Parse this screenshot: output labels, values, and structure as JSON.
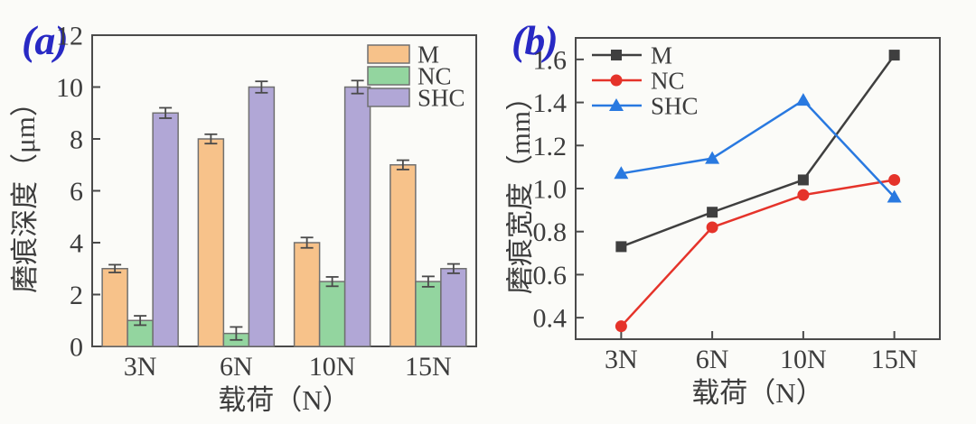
{
  "figure": {
    "background": "#fbfbf8",
    "text_color": "#3d3d3d",
    "axis_color": "#4a4a4a",
    "panel_label_color": "#2829c4",
    "bar_edge_color": "#707070",
    "error_bar_color": "#4a4a4a"
  },
  "chart_data": [
    {
      "id": "a",
      "panel_label": "(a)",
      "type": "bar",
      "categories": [
        "3N",
        "6N",
        "10N",
        "15N"
      ],
      "series": [
        {
          "name": "M",
          "fill": "#f7c28a",
          "values": [
            3.0,
            8.0,
            4.0,
            7.0
          ],
          "errors": [
            0.15,
            0.18,
            0.2,
            0.18
          ]
        },
        {
          "name": "NC",
          "fill": "#93d59f",
          "values": [
            1.0,
            0.5,
            2.5,
            2.5
          ],
          "errors": [
            0.18,
            0.25,
            0.18,
            0.2
          ]
        },
        {
          "name": "SHC",
          "fill": "#b1a7d6",
          "values": [
            9.0,
            10.0,
            10.0,
            3.0
          ],
          "errors": [
            0.2,
            0.22,
            0.25,
            0.18
          ]
        }
      ],
      "xlabel": "载荷（N）",
      "ylabel": "磨痕深度（μm）",
      "ylim": [
        0,
        12
      ],
      "yticks": [
        "0",
        "2",
        "4",
        "6",
        "8",
        "10",
        "12"
      ],
      "grid": false,
      "legend": {
        "position": "top-right",
        "labels": [
          "M",
          "NC",
          "SHC"
        ]
      }
    },
    {
      "id": "b",
      "panel_label": "(b)",
      "type": "line",
      "categories": [
        "3N",
        "6N",
        "10N",
        "15N"
      ],
      "series": [
        {
          "name": "M",
          "color": "#3f3f3f",
          "marker": "square",
          "values": [
            0.73,
            0.89,
            1.04,
            1.62
          ]
        },
        {
          "name": "NC",
          "color": "#e5332a",
          "marker": "circle",
          "values": [
            0.36,
            0.82,
            0.97,
            1.04
          ]
        },
        {
          "name": "SHC",
          "color": "#2979e0",
          "marker": "triangle",
          "values": [
            1.07,
            1.14,
            1.41,
            0.96
          ]
        }
      ],
      "xlabel": "载荷（N）",
      "ylabel": "磨痕宽度（mm）",
      "ylim": [
        0.3,
        1.7
      ],
      "yticks": [
        "0.4",
        "0.6",
        "0.8",
        "1.0",
        "1.2",
        "1.4",
        "1.6"
      ],
      "grid": false,
      "legend": {
        "position": "top-left",
        "labels": [
          "M",
          "NC",
          "SHC"
        ]
      }
    }
  ]
}
